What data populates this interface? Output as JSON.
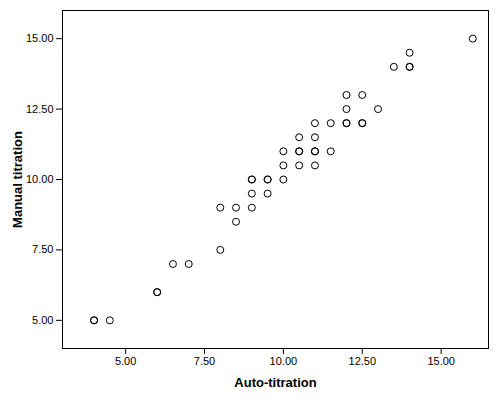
{
  "chart_data": {
    "type": "scatter",
    "x_label": "Auto-titration",
    "y_label": "Manual titration",
    "x": [
      4,
      4,
      4.5,
      6,
      6,
      6.5,
      7,
      8,
      8,
      8.5,
      8.5,
      9,
      9,
      9,
      9,
      9.5,
      9.5,
      9.5,
      10,
      10,
      10,
      10.5,
      10.5,
      10.5,
      10.5,
      11,
      11,
      11,
      11,
      11,
      11.5,
      11.5,
      12,
      12,
      12,
      12,
      12.5,
      12.5,
      12.5,
      13,
      13.5,
      14,
      14,
      14,
      16
    ],
    "values": [
      5,
      5,
      5,
      6,
      6,
      7,
      7,
      7.5,
      9,
      8.5,
      9,
      9,
      9.5,
      10,
      10,
      9.5,
      10,
      10,
      10,
      10.5,
      11,
      10.5,
      11,
      11,
      11.5,
      10.5,
      11,
      11,
      11.5,
      12,
      11,
      12,
      12,
      12,
      12.5,
      13,
      12,
      12,
      13,
      12.5,
      14,
      14,
      14,
      14.5,
      15
    ],
    "color": "#000000",
    "marker": "open_circle",
    "grid": false,
    "xlim": [
      3,
      16.5
    ],
    "ylim": [
      4,
      16
    ],
    "xticks": [
      {
        "value": 5,
        "label": "5.00"
      },
      {
        "value": 7.5,
        "label": "7.50"
      },
      {
        "value": 10,
        "label": "10.00"
      },
      {
        "value": 12.5,
        "label": "12.50"
      },
      {
        "value": 15,
        "label": "15.00"
      }
    ],
    "yticks": [
      {
        "value": 5,
        "label": "5.00"
      },
      {
        "value": 7.5,
        "label": "7.50"
      },
      {
        "value": 10,
        "label": "10.00"
      },
      {
        "value": 12.5,
        "label": "12.50"
      },
      {
        "value": 15,
        "label": "15.00"
      }
    ]
  }
}
